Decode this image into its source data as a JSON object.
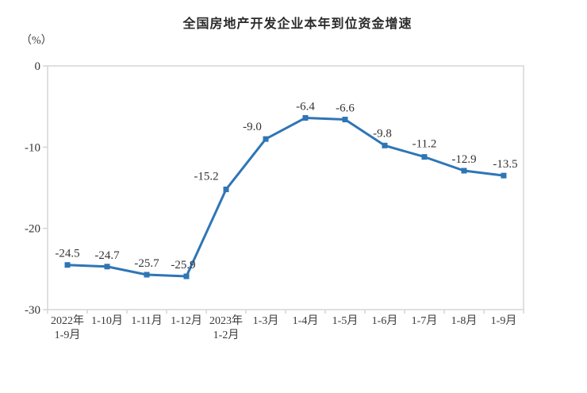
{
  "title": "全国房地产开发企业本年到位资金增速",
  "y_axis_unit": "（%）",
  "chart_data": {
    "type": "line",
    "title": "全国房地产开发企业本年到位资金增速",
    "categories": [
      [
        "2022年",
        "1-9月"
      ],
      [
        "1-10月"
      ],
      [
        "1-11月"
      ],
      [
        "1-12月"
      ],
      [
        "2023年",
        "1-2月"
      ],
      [
        "1-3月"
      ],
      [
        "1-4月"
      ],
      [
        "1-5月"
      ],
      [
        "1-6月"
      ],
      [
        "1-7月"
      ],
      [
        "1-8月"
      ],
      [
        "1-9月"
      ]
    ],
    "values": [
      -24.5,
      -24.7,
      -25.7,
      -25.9,
      -15.2,
      -9.0,
      -6.4,
      -6.6,
      -9.8,
      -11.2,
      -12.9,
      -13.5
    ],
    "data_labels": [
      "-24.5",
      "-24.7",
      "-25.7",
      "-25.9",
      "-15.2",
      "-9.0",
      "-6.4",
      "-6.6",
      "-9.8",
      "-11.2",
      "-12.9",
      "-13.5"
    ],
    "ylabel_unit": "（%）",
    "y_ticks": [
      0,
      -10,
      -20,
      -30
    ],
    "ylim": [
      -30,
      0
    ],
    "grid": false,
    "legend_position": "none",
    "marker_shape": "square",
    "colors": {
      "line": "#2E75B6",
      "marker": "#2E75B6",
      "axis": "#D5D5D5",
      "text": "#333333",
      "title_text": "#2B2B2B"
    }
  }
}
